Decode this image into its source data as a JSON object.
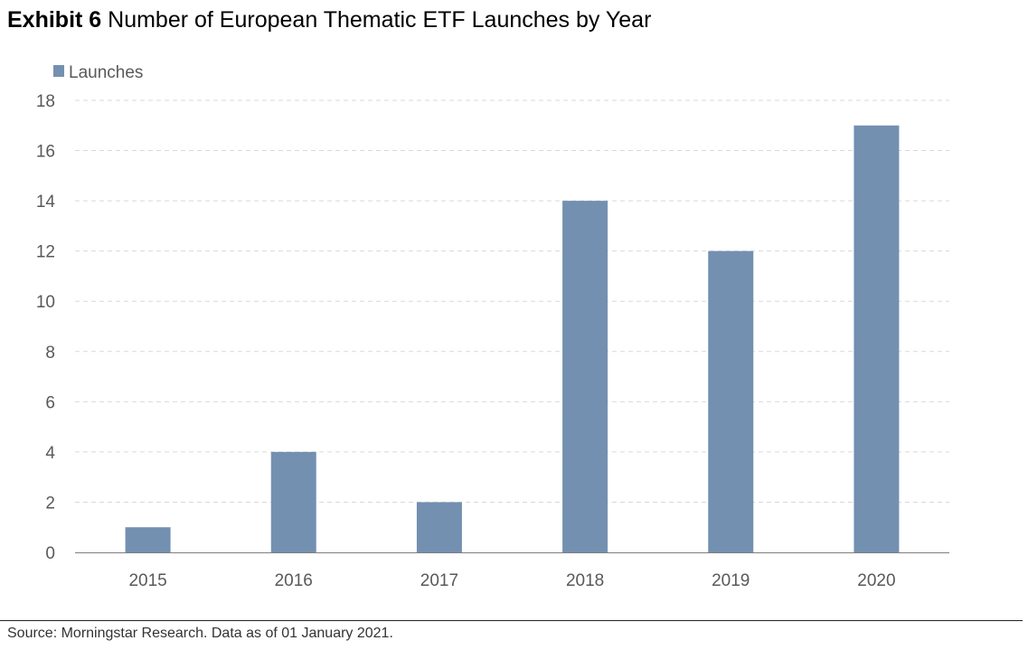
{
  "header": {
    "exhibit_label": "Exhibit 6",
    "title": "Number of European Thematic ETF Launches by Year"
  },
  "footer": {
    "source": "Source: Morningstar Research. Data as of 01 January 2021."
  },
  "colors": {
    "bar": "#7390b1",
    "grid": "#d9d9d9",
    "axis": "#7f7f7f",
    "text": "#595959"
  },
  "chart_data": {
    "type": "bar",
    "title": "Number of European Thematic ETF Launches by Year",
    "categories": [
      "2015",
      "2016",
      "2017",
      "2018",
      "2019",
      "2020"
    ],
    "series": [
      {
        "name": "Launches",
        "values": [
          1,
          4,
          2,
          14,
          12,
          17
        ]
      }
    ],
    "xlabel": "",
    "ylabel": "",
    "ylim": [
      0,
      18
    ],
    "yticks": [
      0,
      2,
      4,
      6,
      8,
      10,
      12,
      14,
      16,
      18
    ],
    "grid": true,
    "legend": "top-left"
  }
}
